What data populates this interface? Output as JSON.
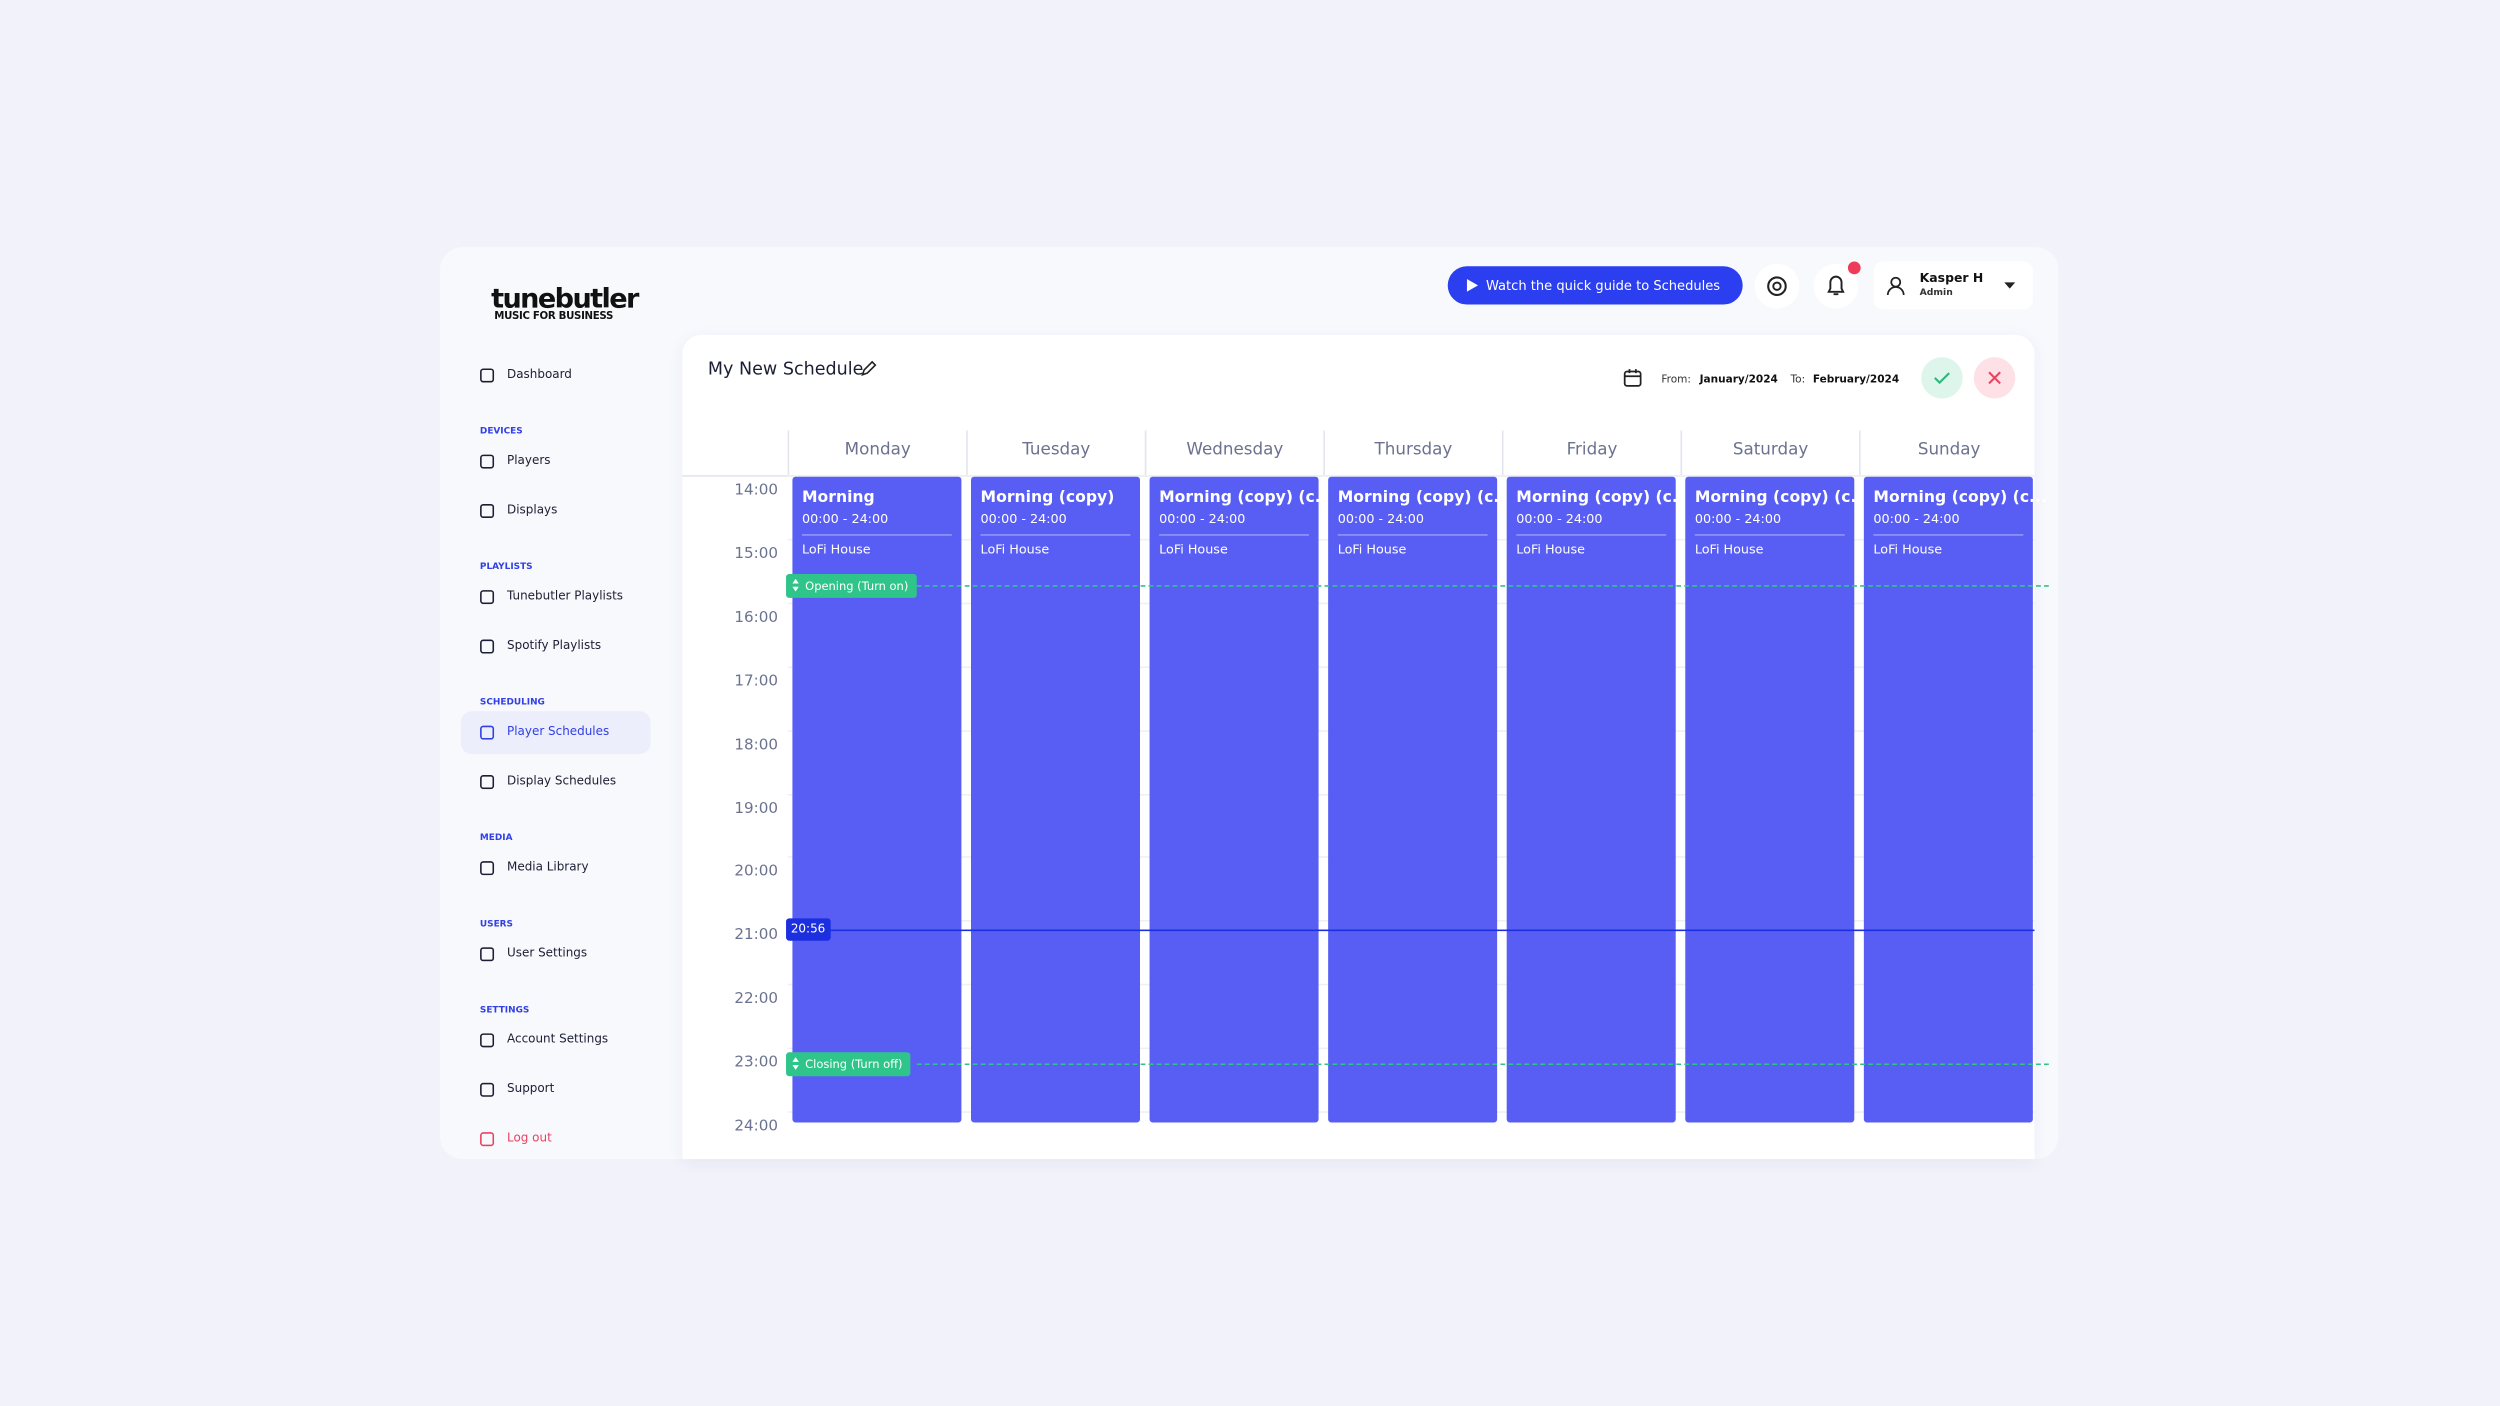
{
  "brand": {
    "name": "tunebutler",
    "tagline": "MUSIC FOR BUSINESS"
  },
  "nav": [
    {
      "items": [
        {
          "label": "Dashboard"
        }
      ]
    },
    {
      "heading": "DEVICES",
      "items": [
        {
          "label": "Players"
        },
        {
          "label": "Displays"
        }
      ]
    },
    {
      "heading": "PLAYLISTS",
      "items": [
        {
          "label": "Tunebutler Playlists"
        },
        {
          "label": "Spotify Playlists"
        }
      ]
    },
    {
      "heading": "SCHEDULING",
      "items": [
        {
          "label": "Player Schedules",
          "active": true
        },
        {
          "label": "Display Schedules"
        }
      ]
    },
    {
      "heading": "MEDIA",
      "items": [
        {
          "label": "Media Library"
        }
      ]
    },
    {
      "heading": "USERS",
      "items": [
        {
          "label": "User Settings"
        }
      ]
    },
    {
      "heading": "SETTINGS",
      "items": [
        {
          "label": "Account Settings"
        },
        {
          "label": "Support"
        },
        {
          "label": "Log out",
          "danger": true
        }
      ]
    }
  ],
  "header": {
    "guide_button": "Watch the quick guide to Schedules",
    "notification_badge": true,
    "user": {
      "name": "Kasper H",
      "role": "Admin"
    }
  },
  "schedule": {
    "title": "My New Schedule",
    "from_label": "From:",
    "from": "January/2024",
    "to_label": "To:",
    "to": "February/2024",
    "days": [
      "Monday",
      "Tuesday",
      "Wednesday",
      "Thursday",
      "Friday",
      "Saturday",
      "Sunday"
    ],
    "hours": [
      "14:00",
      "15:00",
      "16:00",
      "17:00",
      "18:00",
      "19:00",
      "20:00",
      "21:00",
      "22:00",
      "23:00",
      "24:00"
    ],
    "events": [
      {
        "title": "Morning",
        "time": "00:00 - 24:00",
        "playlist": "LoFi House"
      },
      {
        "title": "Morning (copy)",
        "time": "00:00 - 24:00",
        "playlist": "LoFi House"
      },
      {
        "title": "Morning (copy) (c...",
        "time": "00:00 - 24:00",
        "playlist": "LoFi House"
      },
      {
        "title": "Morning (copy) (c...",
        "time": "00:00 - 24:00",
        "playlist": "LoFi House"
      },
      {
        "title": "Morning (copy) (c...",
        "time": "00:00 - 24:00",
        "playlist": "LoFi House"
      },
      {
        "title": "Morning (copy) (c...",
        "time": "00:00 - 24:00",
        "playlist": "LoFi House"
      },
      {
        "title": "Morning (copy) (c...",
        "time": "00:00 - 24:00",
        "playlist": "LoFi House"
      }
    ],
    "markers": [
      {
        "label": "Opening (Turn on)"
      },
      {
        "label": "Closing (Turn off)"
      }
    ],
    "current_time": "20:56"
  }
}
